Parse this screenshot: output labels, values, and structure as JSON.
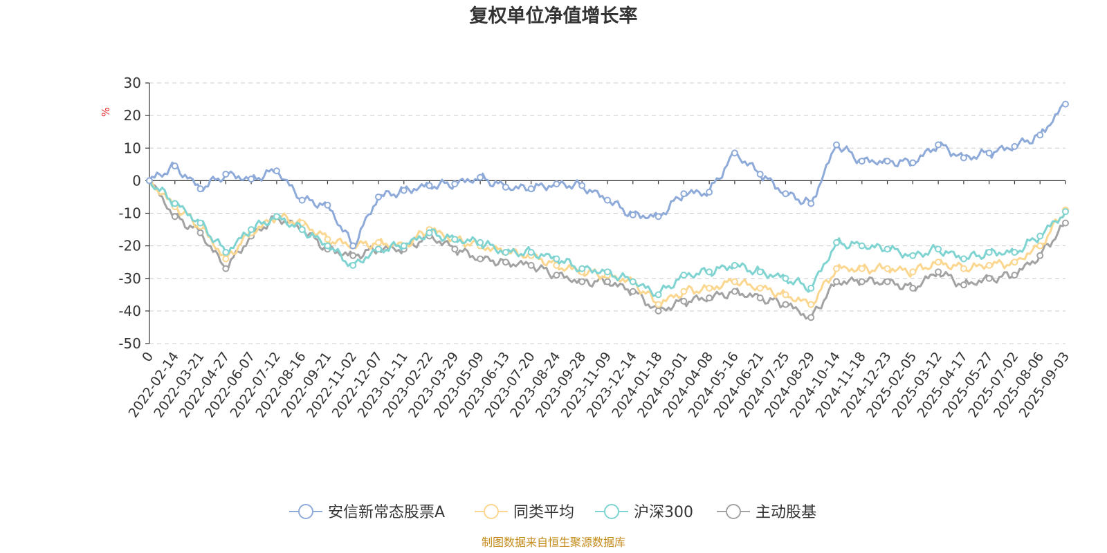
{
  "chart_data": {
    "type": "line",
    "title": "复权单位净值增长率",
    "ylabel": "%",
    "ylim": [
      -50,
      30
    ],
    "yticks": [
      30,
      20,
      10,
      0,
      -10,
      -20,
      -30,
      -40,
      -50
    ],
    "x_categories": [
      "0",
      "2022-02-14",
      "2022-03-21",
      "2022-04-27",
      "2022-06-07",
      "2022-07-12",
      "2022-08-16",
      "2022-09-21",
      "2022-11-02",
      "2022-12-07",
      "2023-01-11",
      "2023-02-22",
      "2023-03-29",
      "2023-05-09",
      "2023-06-13",
      "2023-07-20",
      "2023-08-24",
      "2023-09-28",
      "2023-11-09",
      "2023-12-14",
      "2024-01-18",
      "2024-03-01",
      "2024-04-08",
      "2024-05-16",
      "2024-06-21",
      "2024-07-25",
      "2024-08-29",
      "2024-10-14",
      "2024-11-18",
      "2024-12-23",
      "2025-02-05",
      "2025-03-12",
      "2025-04-17",
      "2025-05-27",
      "2025-07-02",
      "2025-08-06",
      "2025-09-03"
    ],
    "grid": true,
    "legend_position": "bottom",
    "series": [
      {
        "name": "安信新常态股票A",
        "color": "#8eaad9",
        "values": [
          0,
          4.5,
          -2.5,
          2,
          0.5,
          3,
          -6,
          -7.5,
          -20,
          -5,
          -3,
          -1.5,
          -1,
          1,
          -2,
          -2.5,
          -1,
          -1.5,
          -6,
          -10.5,
          -11,
          -4,
          -3.5,
          8.5,
          2,
          -4,
          -7,
          11,
          6,
          6,
          5.5,
          11,
          7,
          8.5,
          10.5,
          14,
          23.5
        ]
      },
      {
        "name": "同类平均",
        "color": "#fbd68f",
        "values": [
          0,
          -8,
          -14,
          -24,
          -16,
          -11,
          -13,
          -18,
          -20,
          -19,
          -20,
          -15,
          -18,
          -20,
          -22,
          -23,
          -26,
          -28,
          -29,
          -31,
          -38,
          -34,
          -33,
          -31,
          -33,
          -35,
          -38,
          -27,
          -27,
          -27,
          -28,
          -25,
          -27,
          -26,
          -25,
          -20,
          -9
        ]
      },
      {
        "name": "沪深300",
        "color": "#7fd3d1",
        "values": [
          0,
          -7,
          -13,
          -22,
          -15,
          -11,
          -15,
          -20,
          -26,
          -21,
          -20,
          -16,
          -18,
          -19,
          -22,
          -22,
          -24,
          -27,
          -28,
          -31,
          -35,
          -29,
          -28,
          -26,
          -28,
          -30,
          -33,
          -19,
          -20,
          -21,
          -23,
          -21,
          -24,
          -22,
          -22,
          -17,
          -9.5
        ]
      },
      {
        "name": "主动股基",
        "color": "#a2a2a2",
        "values": [
          0,
          -11,
          -16,
          -27,
          -17,
          -11,
          -15,
          -21,
          -23,
          -21,
          -21,
          -17,
          -21,
          -24,
          -25,
          -26,
          -29,
          -31,
          -31,
          -34,
          -40,
          -37,
          -36,
          -34,
          -36,
          -38,
          -42,
          -31,
          -31,
          -31,
          -33,
          -28,
          -32,
          -30,
          -29,
          -23,
          -13
        ]
      }
    ]
  },
  "source": "制图数据来自恒生聚源数据库"
}
